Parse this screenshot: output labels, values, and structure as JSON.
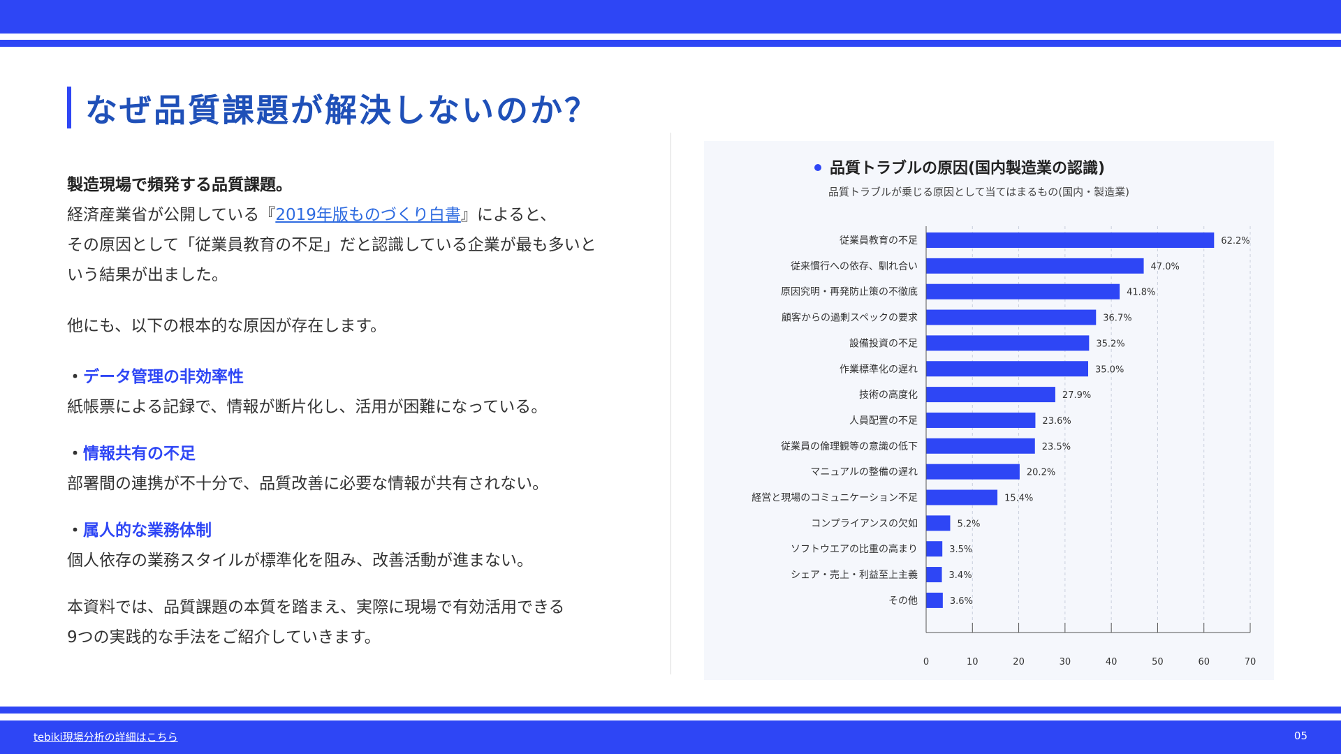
{
  "header": {
    "title": "なぜ品質課題が解決しないのか？"
  },
  "intro": {
    "lead": "製造現場で頻発する品質課題。",
    "line1_before": "経済産業省が公開している『",
    "line1_link": "2019年版ものづくり白書",
    "line1_after": "』によると、",
    "line2": "その原因として「従業員教育の不足」だと認識している企業が最も多いと",
    "line3": "いう結果が出ました。",
    "line4": "他にも、以下の根本的な原因が存在します。"
  },
  "bullets": [
    {
      "marker": "・",
      "title": "データ管理の非効率性",
      "desc": "紙帳票による記録で、情報が断片化し、活用が困難になっている。"
    },
    {
      "marker": "・",
      "title": "情報共有の不足",
      "desc": "部署間の連携が不十分で、品質改善に必要な情報が共有されない。"
    },
    {
      "marker": "・",
      "title": "属人的な業務体制",
      "desc": "個人依存の業務スタイルが標準化を阻み、改善活動が進まない。"
    }
  ],
  "closing": {
    "line1": "本資料では、品質課題の本質を踏まえ、実際に現場で有効活用できる",
    "line2": "9つの実践的な手法をご紹介していきます。"
  },
  "footer": {
    "link": "tebiki現場分析の詳細はこちら",
    "page": "05"
  },
  "colors": {
    "accent": "#2E46F5",
    "title": "#1F50B8",
    "panel": "#F5F7FC"
  },
  "chart_data": {
    "type": "bar",
    "orientation": "horizontal",
    "title": "品質トラブルの原因(国内製造業の認識)",
    "subtitle": "品質トラブルが乗じる原因として当てはまるもの(国内・製造業)",
    "categories": [
      "従業員教育の不足",
      "従来慣行への依存、馴れ合い",
      "原因究明・再発防止策の不徹底",
      "顧客からの過剰スペックの要求",
      "設備投資の不足",
      "作業標準化の遅れ",
      "技術の高度化",
      "人員配置の不足",
      "従業員の倫理観等の意識の低下",
      "マニュアルの整備の遅れ",
      "経営と現場のコミュニケーション不足",
      "コンプライアンスの欠如",
      "ソフトウエアの比重の高まり",
      "シェア・売上・利益至上主義",
      "その他"
    ],
    "values": [
      62.2,
      47.0,
      41.8,
      36.7,
      35.2,
      35.0,
      27.9,
      23.6,
      23.5,
      20.2,
      15.4,
      5.2,
      3.5,
      3.4,
      3.6
    ],
    "value_labels": [
      "62.2%",
      "47.0%",
      "41.8%",
      "36.7%",
      "35.2%",
      "35.0%",
      "27.9%",
      "23.6%",
      "23.5%",
      "20.2%",
      "15.4%",
      "5.2%",
      "3.5%",
      "3.4%",
      "3.6%"
    ],
    "xlim": [
      0,
      70
    ],
    "xticks": [
      0,
      10,
      20,
      30,
      40,
      50,
      60,
      70
    ],
    "xtick_labels": [
      "0",
      "10",
      "20",
      "30",
      "40",
      "50",
      "60",
      "70"
    ],
    "grid": "vertical dashed",
    "bar_color": "#2E46F5"
  }
}
